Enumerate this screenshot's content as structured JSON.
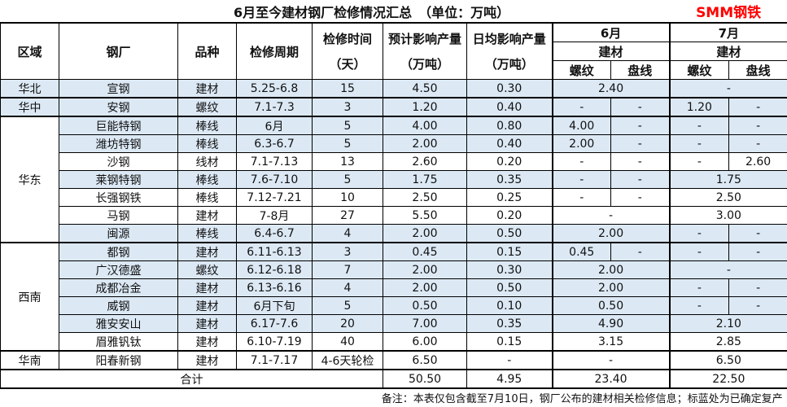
{
  "title": "6月至今建材钢厂检修情况汇总　（单位：万吨）",
  "brand": "SMM钢铁",
  "headers": {
    "region": "区域",
    "plant": "钢厂",
    "variety": "品种",
    "period": "检修周期",
    "days": "检修时间",
    "days_unit": "（天）",
    "est": "预计影响产量",
    "est_unit": "（万吨）",
    "daily": "日均影响产量",
    "daily_unit": "（万吨）",
    "jun": "6月",
    "jul": "7月",
    "building": "建材",
    "rebar": "螺纹",
    "wire": "盘线"
  },
  "highlight_color": "#dce9f5",
  "regions": [
    {
      "name": "华北",
      "highlight": true,
      "rows": [
        {
          "plant": "宣钢",
          "variety": "建材",
          "period": "5.25-6.8",
          "days": "15",
          "est": "4.50",
          "daily": "0.30",
          "jun": [
            "2.40"
          ],
          "jul": [
            "-"
          ],
          "highlight": true
        }
      ]
    },
    {
      "name": "华中",
      "highlight": true,
      "rows": [
        {
          "plant": "安钢",
          "variety": "螺纹",
          "period": "7.1-7.3",
          "days": "3",
          "est": "1.20",
          "daily": "0.40",
          "jun": [
            "-",
            "-"
          ],
          "jul": [
            "1.20",
            "-"
          ],
          "highlight": true
        }
      ]
    },
    {
      "name": "华东",
      "highlight": false,
      "rows": [
        {
          "plant": "巨能特钢",
          "variety": "棒线",
          "period": "6月",
          "days": "5",
          "est": "4.00",
          "daily": "0.80",
          "jun": [
            "4.00",
            "-"
          ],
          "jul": [
            "-",
            "-"
          ],
          "highlight": true
        },
        {
          "plant": "潍坊特钢",
          "variety": "棒线",
          "period": "6.3-6.7",
          "days": "5",
          "est": "2.00",
          "daily": "0.40",
          "jun": [
            "2.00",
            "-"
          ],
          "jul": [
            "-",
            "-"
          ],
          "highlight": true
        },
        {
          "plant": "沙钢",
          "variety": "线材",
          "period": "7.1-7.13",
          "days": "13",
          "est": "2.60",
          "daily": "0.20",
          "jun": [
            "-",
            "-"
          ],
          "jul": [
            "-",
            "2.60"
          ],
          "highlight": false
        },
        {
          "plant": "莱钢特钢",
          "variety": "棒线",
          "period": "7.6-7.10",
          "days": "5",
          "est": "1.75",
          "daily": "0.35",
          "jun": [
            "-",
            "-"
          ],
          "jul": [
            "1.75"
          ],
          "highlight": true
        },
        {
          "plant": "长强钢铁",
          "variety": "棒线",
          "period": "7.12-7.21",
          "days": "10",
          "est": "2.50",
          "daily": "0.25",
          "jun": [
            "-",
            "-"
          ],
          "jul": [
            "2.50"
          ],
          "highlight": false
        },
        {
          "plant": "马钢",
          "variety": "建材",
          "period": "7-8月",
          "days": "27",
          "est": "5.50",
          "daily": "0.20",
          "jun": [
            "-"
          ],
          "jul": [
            "3.00"
          ],
          "highlight": false
        },
        {
          "plant": "闽源",
          "variety": "棒线",
          "period": "6.4-6.7",
          "days": "4",
          "est": "2.00",
          "daily": "0.50",
          "jun": [
            "2.00"
          ],
          "jul": [
            "-",
            "-"
          ],
          "highlight": true
        }
      ]
    },
    {
      "name": "西南",
      "highlight": false,
      "rows": [
        {
          "plant": "都钢",
          "variety": "建材",
          "period": "6.11-6.13",
          "days": "3",
          "est": "0.45",
          "daily": "0.15",
          "jun": [
            "0.45",
            "-"
          ],
          "jul": [
            "-",
            "-"
          ],
          "highlight": true
        },
        {
          "plant": "广汉德盛",
          "variety": "螺纹",
          "period": "6.12-6.18",
          "days": "7",
          "est": "2.00",
          "daily": "0.30",
          "jun": [
            "2.00"
          ],
          "jul": [
            "-"
          ],
          "highlight": true
        },
        {
          "plant": "成都冶金",
          "variety": "建材",
          "period": "6.13-6.16",
          "days": "4",
          "est": "2.00",
          "daily": "0.50",
          "jun": [
            "2.00"
          ],
          "jul": [
            "-",
            "-"
          ],
          "highlight": true
        },
        {
          "plant": "威钢",
          "variety": "建材",
          "period": "6月下旬",
          "days": "5",
          "est": "0.50",
          "daily": "0.10",
          "jun": [
            "0.50"
          ],
          "jul": [
            "-",
            "-"
          ],
          "highlight": true
        },
        {
          "plant": "雅安安山",
          "variety": "建材",
          "period": "6.17-7.6",
          "days": "20",
          "est": "7.00",
          "daily": "0.35",
          "jun": [
            "4.90"
          ],
          "jul": [
            "2.10"
          ],
          "highlight": true
        },
        {
          "plant": "眉雅钒钛",
          "variety": "建材",
          "period": "6.10-7.19",
          "days": "40",
          "est": "6.00",
          "daily": "0.15",
          "jun": [
            "3.15"
          ],
          "jul": [
            "2.85"
          ],
          "highlight": false
        }
      ]
    },
    {
      "name": "华南",
      "highlight": false,
      "rows": [
        {
          "plant": "阳春新钢",
          "variety": "建材",
          "period": "7.1-7.17",
          "days": "4-6天轮检",
          "est": "6.50",
          "daily": "-",
          "jun": [
            "-"
          ],
          "jul": [
            "6.50"
          ],
          "highlight": false
        }
      ]
    }
  ],
  "total": {
    "label": "合计",
    "est": "50.50",
    "daily": "4.95",
    "jun": "23.40",
    "jul": "22.50"
  },
  "note": "备注：本表仅包含截至7月10日，钢厂公布的建材相关检修信息；标蓝处为已确定复产"
}
